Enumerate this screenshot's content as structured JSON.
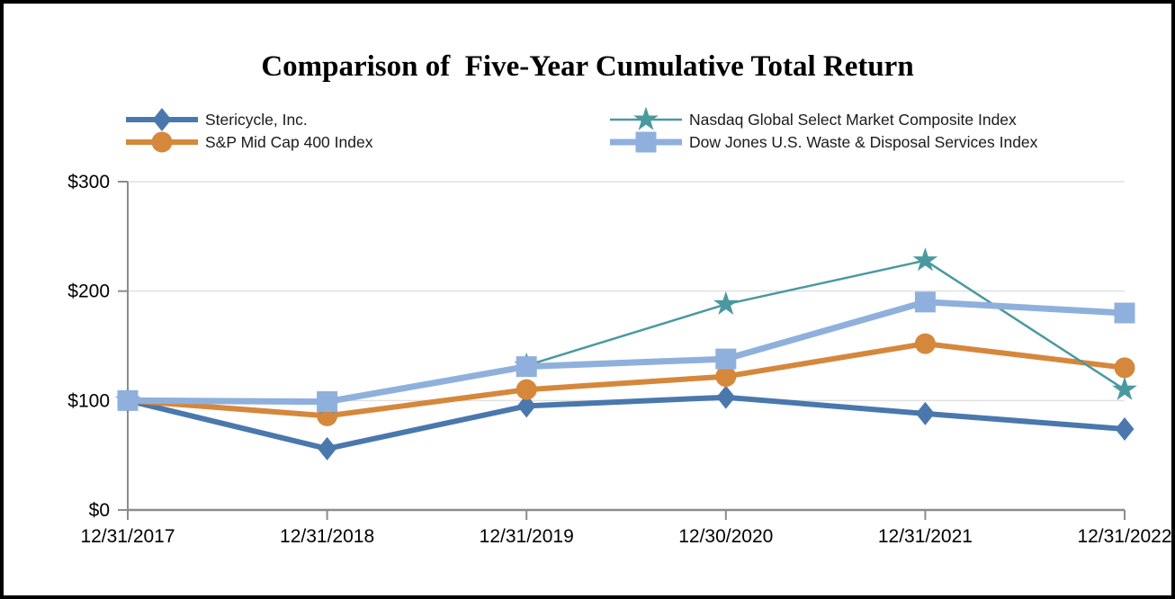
{
  "title": "Comparison of  Five-Year Cumulative Total Return",
  "colors": {
    "background": "#ffffff",
    "frame_border": "#000000",
    "axis": "#8c8c8c",
    "gridline": "#e0e0e0",
    "label_text": "#000000"
  },
  "chart_data": {
    "type": "line",
    "title": "Comparison of  Five-Year Cumulative Total Return",
    "categories": [
      "12/31/2017",
      "12/31/2018",
      "12/31/2019",
      "12/30/2020",
      "12/31/2021",
      "12/31/2022"
    ],
    "series": [
      {
        "name": "Stericycle, Inc.",
        "values": [
          100,
          56,
          95,
          103,
          88,
          74
        ],
        "color": "#4a78ad",
        "marker": "diamond",
        "line_width": 6
      },
      {
        "name": "S&P Mid Cap 400 Index",
        "values": [
          100,
          86,
          110,
          122,
          152,
          130
        ],
        "color": "#d5873c",
        "marker": "circle",
        "line_width": 6
      },
      {
        "name": "Nasdaq Global Select Market Composite Index",
        "values": [
          100,
          97,
          132,
          188,
          228,
          110
        ],
        "color": "#4a99a0",
        "marker": "star",
        "line_width": 2.5
      },
      {
        "name": "Dow Jones U.S. Waste & Disposal Services Index",
        "values": [
          100,
          99,
          131,
          138,
          190,
          180
        ],
        "color": "#8fb0dc",
        "marker": "square",
        "line_width": 7
      }
    ],
    "y_ticks": [
      {
        "label": "$0",
        "value": 0
      },
      {
        "label": "$100",
        "value": 100
      },
      {
        "label": "$200",
        "value": 200
      },
      {
        "label": "$300",
        "value": 300
      }
    ],
    "ylim": [
      0,
      300
    ],
    "grid": "horizontal",
    "legend_position": "top",
    "legend_display_order": [
      0,
      2,
      1,
      3
    ]
  }
}
